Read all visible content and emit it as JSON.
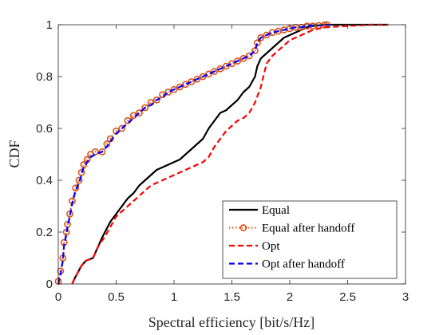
{
  "chart_data": {
    "type": "line",
    "title": "",
    "xlabel": "Spectral efficiency [bit/s/Hz]",
    "ylabel": "CDF",
    "xlim": [
      0,
      3
    ],
    "ylim": [
      0,
      1
    ],
    "xticks": [
      "0",
      "0.5",
      "1",
      "1.5",
      "2",
      "2.5",
      "3"
    ],
    "yticks": [
      "0",
      "0.2",
      "0.4",
      "0.6",
      "0.8",
      "1"
    ],
    "grid": false,
    "legend_position": "bottom-right",
    "series": [
      {
        "name": "Equal",
        "color": "#000000",
        "style": "solid",
        "marker": "none",
        "x": [
          0.12,
          0.14,
          0.2,
          0.24,
          0.3,
          0.35,
          0.38,
          0.45,
          0.5,
          0.55,
          0.6,
          0.65,
          0.7,
          0.75,
          0.8,
          0.85,
          0.9,
          0.95,
          1.0,
          1.05,
          1.1,
          1.15,
          1.2,
          1.25,
          1.3,
          1.35,
          1.4,
          1.45,
          1.5,
          1.55,
          1.6,
          1.65,
          1.7,
          1.72,
          1.75,
          1.8,
          1.85,
          1.9,
          1.95,
          2.0,
          2.05,
          2.1,
          2.15,
          2.2,
          2.3,
          2.5,
          2.7,
          2.85
        ],
        "y": [
          0.0,
          0.02,
          0.07,
          0.09,
          0.1,
          0.15,
          0.18,
          0.24,
          0.27,
          0.3,
          0.33,
          0.35,
          0.38,
          0.4,
          0.42,
          0.44,
          0.45,
          0.46,
          0.47,
          0.48,
          0.5,
          0.52,
          0.54,
          0.56,
          0.6,
          0.63,
          0.66,
          0.67,
          0.69,
          0.71,
          0.74,
          0.76,
          0.8,
          0.84,
          0.87,
          0.89,
          0.91,
          0.93,
          0.95,
          0.96,
          0.97,
          0.98,
          0.99,
          0.995,
          1.0,
          1.0,
          1.0,
          1.0
        ]
      },
      {
        "name": "Equal after handoff",
        "color": "#d95319",
        "style": "dotted",
        "marker": "circle",
        "x": [
          0.0,
          0.02,
          0.04,
          0.05,
          0.07,
          0.08,
          0.1,
          0.12,
          0.15,
          0.18,
          0.2,
          0.22,
          0.25,
          0.28,
          0.32,
          0.38,
          0.42,
          0.45,
          0.5,
          0.55,
          0.6,
          0.65,
          0.7,
          0.75,
          0.8,
          0.85,
          0.9,
          0.95,
          1.0,
          1.05,
          1.1,
          1.15,
          1.2,
          1.25,
          1.3,
          1.35,
          1.4,
          1.45,
          1.5,
          1.55,
          1.6,
          1.65,
          1.7,
          1.72,
          1.75,
          1.8,
          1.85,
          1.9,
          1.95,
          2.0,
          2.05,
          2.1,
          2.15,
          2.2,
          2.25,
          2.3,
          2.32
        ],
        "y": [
          0.01,
          0.05,
          0.1,
          0.16,
          0.2,
          0.23,
          0.27,
          0.32,
          0.37,
          0.4,
          0.43,
          0.46,
          0.48,
          0.5,
          0.51,
          0.51,
          0.54,
          0.56,
          0.59,
          0.6,
          0.63,
          0.65,
          0.66,
          0.68,
          0.7,
          0.71,
          0.73,
          0.74,
          0.75,
          0.76,
          0.77,
          0.78,
          0.79,
          0.8,
          0.81,
          0.82,
          0.83,
          0.84,
          0.85,
          0.86,
          0.87,
          0.88,
          0.9,
          0.93,
          0.95,
          0.96,
          0.97,
          0.975,
          0.98,
          0.985,
          0.99,
          0.99,
          0.995,
          0.995,
          0.997,
          0.999,
          1.0
        ]
      },
      {
        "name": "Opt",
        "color": "#ff0000",
        "style": "dashed",
        "marker": "none",
        "x": [
          0.12,
          0.14,
          0.2,
          0.24,
          0.3,
          0.35,
          0.4,
          0.45,
          0.5,
          0.55,
          0.6,
          0.65,
          0.7,
          0.75,
          0.8,
          0.85,
          0.9,
          0.95,
          1.0,
          1.05,
          1.1,
          1.15,
          1.2,
          1.25,
          1.3,
          1.35,
          1.4,
          1.45,
          1.5,
          1.55,
          1.6,
          1.65,
          1.7,
          1.75,
          1.8,
          1.85,
          1.9,
          1.95,
          2.0,
          2.05,
          2.1,
          2.15,
          2.2,
          2.3,
          2.5,
          2.7,
          2.85
        ],
        "y": [
          0.0,
          0.02,
          0.07,
          0.09,
          0.1,
          0.15,
          0.18,
          0.22,
          0.26,
          0.28,
          0.3,
          0.32,
          0.34,
          0.36,
          0.38,
          0.39,
          0.4,
          0.41,
          0.42,
          0.43,
          0.44,
          0.45,
          0.46,
          0.47,
          0.49,
          0.53,
          0.56,
          0.59,
          0.61,
          0.63,
          0.64,
          0.66,
          0.7,
          0.76,
          0.85,
          0.88,
          0.9,
          0.92,
          0.94,
          0.95,
          0.96,
          0.97,
          0.98,
          0.99,
          0.995,
          1.0,
          1.0
        ]
      },
      {
        "name": "Opt after handoff",
        "color": "#0000ff",
        "style": "dashed",
        "marker": "none",
        "x": [
          0.0,
          0.02,
          0.04,
          0.05,
          0.07,
          0.08,
          0.1,
          0.12,
          0.15,
          0.18,
          0.2,
          0.22,
          0.25,
          0.28,
          0.32,
          0.38,
          0.42,
          0.45,
          0.5,
          0.55,
          0.6,
          0.65,
          0.7,
          0.75,
          0.8,
          0.85,
          0.9,
          0.95,
          1.0,
          1.05,
          1.1,
          1.15,
          1.2,
          1.25,
          1.3,
          1.35,
          1.4,
          1.45,
          1.5,
          1.55,
          1.6,
          1.65,
          1.7,
          1.72,
          1.75,
          1.8,
          1.85,
          1.9,
          1.95,
          2.0,
          2.05,
          2.1,
          2.15,
          2.2,
          2.25,
          2.3,
          2.35
        ],
        "y": [
          0.0,
          0.04,
          0.09,
          0.15,
          0.19,
          0.22,
          0.26,
          0.31,
          0.36,
          0.39,
          0.42,
          0.45,
          0.47,
          0.49,
          0.5,
          0.51,
          0.53,
          0.55,
          0.58,
          0.6,
          0.62,
          0.64,
          0.66,
          0.68,
          0.69,
          0.71,
          0.72,
          0.74,
          0.75,
          0.76,
          0.77,
          0.78,
          0.79,
          0.8,
          0.81,
          0.82,
          0.83,
          0.84,
          0.85,
          0.86,
          0.87,
          0.88,
          0.9,
          0.93,
          0.95,
          0.96,
          0.97,
          0.975,
          0.98,
          0.985,
          0.99,
          0.99,
          0.995,
          0.995,
          0.997,
          0.999,
          1.0
        ]
      }
    ]
  }
}
